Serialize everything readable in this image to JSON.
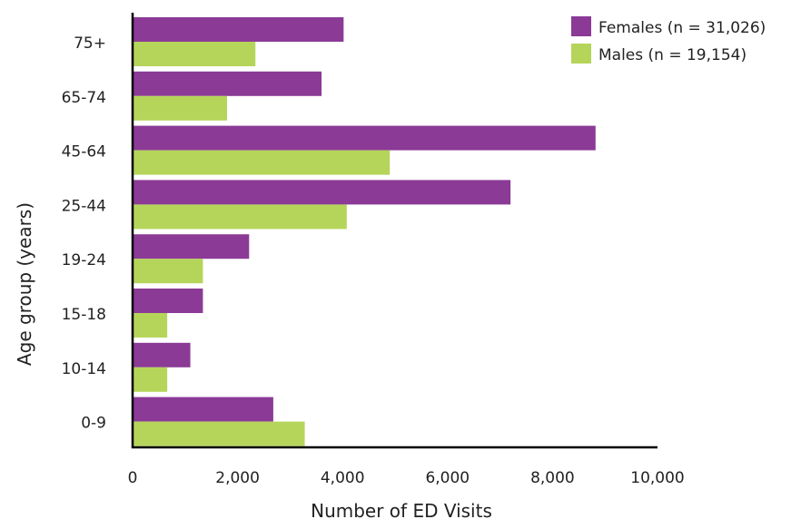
{
  "chart_data": {
    "type": "bar",
    "orientation": "horizontal",
    "categories": [
      "75+",
      "65-74",
      "45-64",
      "25-44",
      "19-24",
      "15-18",
      "10-14",
      "0-9"
    ],
    "series": [
      {
        "name": "Females (n = 31,026)",
        "color": "#8b3a96",
        "values": [
          4020,
          3600,
          8820,
          7200,
          2220,
          1340,
          1100,
          2680
        ]
      },
      {
        "name": "Males (n = 19,154)",
        "color": "#b5d55a",
        "values": [
          2340,
          1800,
          4900,
          4080,
          1340,
          660,
          660,
          3280
        ]
      }
    ],
    "xlabel": "Number of ED Visits",
    "ylabel": "Age group (years)",
    "xlim": [
      0,
      10000
    ],
    "xticks": [
      0,
      2000,
      4000,
      6000,
      8000,
      10000
    ],
    "xtick_labels": [
      "0",
      "2,000",
      "4,000",
      "6,000",
      "8,000",
      "10,000"
    ],
    "grid": false,
    "legend_position": "top-right"
  }
}
